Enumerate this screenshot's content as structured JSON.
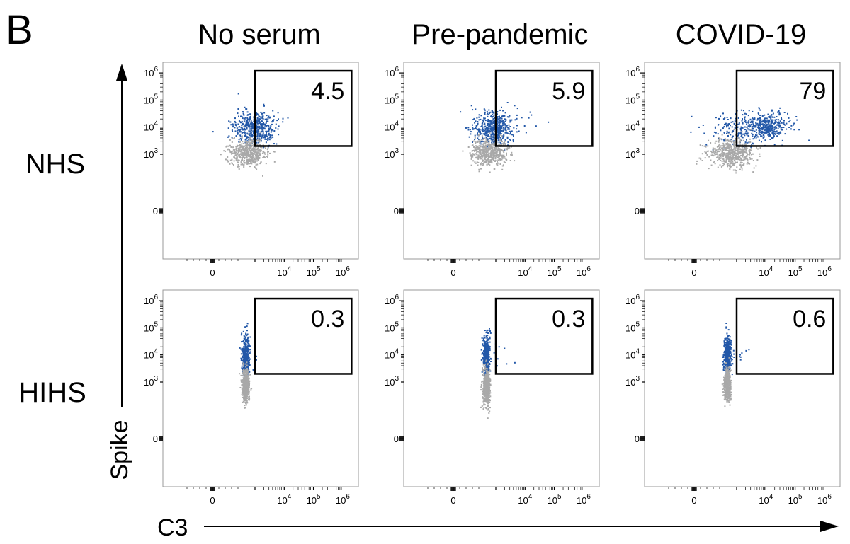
{
  "panel_letter": "B",
  "columns": [
    "No serum",
    "Pre-pandemic",
    "COVID-19"
  ],
  "rows": [
    "NHS",
    "HIHS"
  ],
  "axis": {
    "y_label": "Spike",
    "x_label": "C3",
    "y_ticks": [
      {
        "value": 1000000,
        "base": "10",
        "exp": "6"
      },
      {
        "value": 100000,
        "base": "10",
        "exp": "5"
      },
      {
        "value": 10000,
        "base": "10",
        "exp": "4"
      },
      {
        "value": 1000,
        "base": "10",
        "exp": "3"
      },
      {
        "value": 0,
        "base": "0",
        "exp": ""
      }
    ],
    "x_ticks": [
      {
        "value": 0,
        "base": "0",
        "exp": ""
      },
      {
        "value": 10000,
        "base": "10",
        "exp": "4"
      },
      {
        "value": 100000,
        "base": "10",
        "exp": "5"
      },
      {
        "value": 1000000,
        "base": "10",
        "exp": "6"
      }
    ],
    "scale": "biexponential",
    "point_color_gated": "#2358a8",
    "point_color_other": "#a9a9a9"
  },
  "chart_data": [
    {
      "type": "scatter",
      "row": "NHS",
      "column": "No serum",
      "gate_percent": "4.5",
      "gate": {
        "x": [
          1000,
          2000000
        ],
        "y": [
          2000,
          1200000
        ]
      },
      "clusters": [
        {
          "kind": "blue",
          "n": 480,
          "cx": 800,
          "cy": 10000,
          "sx": 0.35,
          "sy": 0.3
        },
        {
          "kind": "blue",
          "n": 25,
          "cx": 2500,
          "cy": 20000,
          "sx": 0.4,
          "sy": 0.3
        },
        {
          "kind": "grey",
          "n": 520,
          "cx": 300,
          "cy": 1200,
          "sx": 0.3,
          "sy": 0.25
        }
      ]
    },
    {
      "type": "scatter",
      "row": "NHS",
      "column": "Pre-pandemic",
      "gate_percent": "5.9",
      "gate": {
        "x": [
          1000,
          2000000
        ],
        "y": [
          2000,
          1200000
        ]
      },
      "clusters": [
        {
          "kind": "blue",
          "n": 480,
          "cx": 600,
          "cy": 9000,
          "sx": 0.35,
          "sy": 0.3
        },
        {
          "kind": "blue",
          "n": 35,
          "cx": 3000,
          "cy": 15000,
          "sx": 0.45,
          "sy": 0.35
        },
        {
          "kind": "grey",
          "n": 520,
          "cx": 300,
          "cy": 1200,
          "sx": 0.3,
          "sy": 0.25
        }
      ]
    },
    {
      "type": "scatter",
      "row": "NHS",
      "column": "COVID-19",
      "gate_percent": "79",
      "gate": {
        "x": [
          1000,
          2000000
        ],
        "y": [
          2000,
          1200000
        ]
      },
      "clusters": [
        {
          "kind": "blue",
          "n": 380,
          "cx": 10000,
          "cy": 12000,
          "sx": 0.4,
          "sy": 0.25
        },
        {
          "kind": "blue",
          "n": 160,
          "cx": 800,
          "cy": 8000,
          "sx": 0.5,
          "sy": 0.3
        },
        {
          "kind": "grey",
          "n": 560,
          "cx": 400,
          "cy": 1200,
          "sx": 0.4,
          "sy": 0.25
        }
      ]
    },
    {
      "type": "scatter",
      "row": "HIHS",
      "column": "No serum",
      "gate_percent": "0.3",
      "gate": {
        "x": [
          1000,
          2000000
        ],
        "y": [
          2000,
          1200000
        ]
      },
      "clusters": [
        {
          "kind": "blue",
          "n": 420,
          "cx": 200,
          "cy": 9000,
          "sx": 0.06,
          "sy": 0.35
        },
        {
          "kind": "blue",
          "n": 8,
          "cx": 1000,
          "cy": 10000,
          "sx": 0.25,
          "sy": 0.3
        },
        {
          "kind": "grey",
          "n": 500,
          "cx": 200,
          "cy": 700,
          "sx": 0.06,
          "sy": 0.3
        }
      ]
    },
    {
      "type": "scatter",
      "row": "HIHS",
      "column": "Pre-pandemic",
      "gate_percent": "0.3",
      "gate": {
        "x": [
          1000,
          2000000
        ],
        "y": [
          2000,
          1200000
        ]
      },
      "clusters": [
        {
          "kind": "blue",
          "n": 420,
          "cx": 200,
          "cy": 9000,
          "sx": 0.06,
          "sy": 0.35
        },
        {
          "kind": "blue",
          "n": 10,
          "cx": 1200,
          "cy": 12000,
          "sx": 0.25,
          "sy": 0.3
        },
        {
          "kind": "grey",
          "n": 520,
          "cx": 200,
          "cy": 600,
          "sx": 0.06,
          "sy": 0.35
        }
      ]
    },
    {
      "type": "scatter",
      "row": "HIHS",
      "column": "COVID-19",
      "gate_percent": "0.6",
      "gate": {
        "x": [
          1000,
          2000000
        ],
        "y": [
          2000,
          1200000
        ]
      },
      "clusters": [
        {
          "kind": "blue",
          "n": 420,
          "cx": 200,
          "cy": 9000,
          "sx": 0.06,
          "sy": 0.35
        },
        {
          "kind": "blue",
          "n": 14,
          "cx": 1200,
          "cy": 12000,
          "sx": 0.25,
          "sy": 0.3
        },
        {
          "kind": "grey",
          "n": 500,
          "cx": 200,
          "cy": 700,
          "sx": 0.06,
          "sy": 0.3
        }
      ]
    }
  ]
}
